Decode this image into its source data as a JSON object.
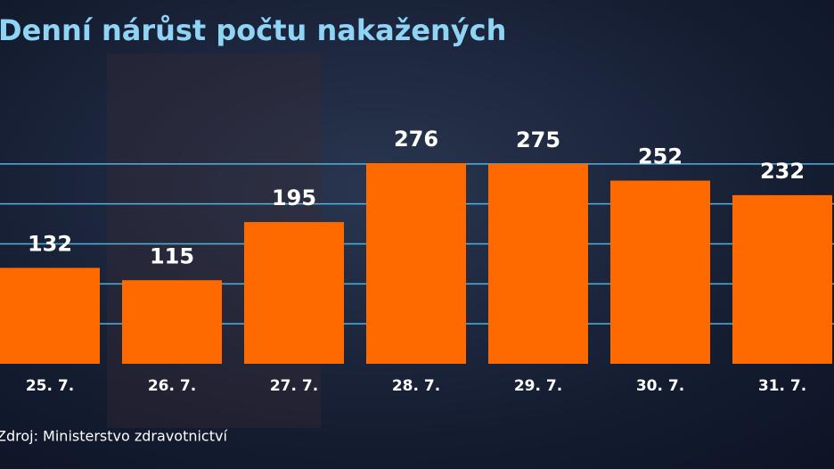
{
  "chart_data": {
    "type": "bar",
    "title": "Denní nárůst počtu nakažených",
    "categories": [
      "25. 7.",
      "26. 7.",
      "27. 7.",
      "28. 7.",
      "29. 7.",
      "30. 7.",
      "31. 7."
    ],
    "values": [
      132,
      115,
      195,
      276,
      275,
      252,
      232
    ],
    "color": "#ff6a00",
    "ylim": [
      0,
      330
    ],
    "yticks": [
      55,
      110,
      165,
      220,
      275
    ],
    "grid": true,
    "source": "Zdroj: Ministerstvo zdravotnictví"
  }
}
